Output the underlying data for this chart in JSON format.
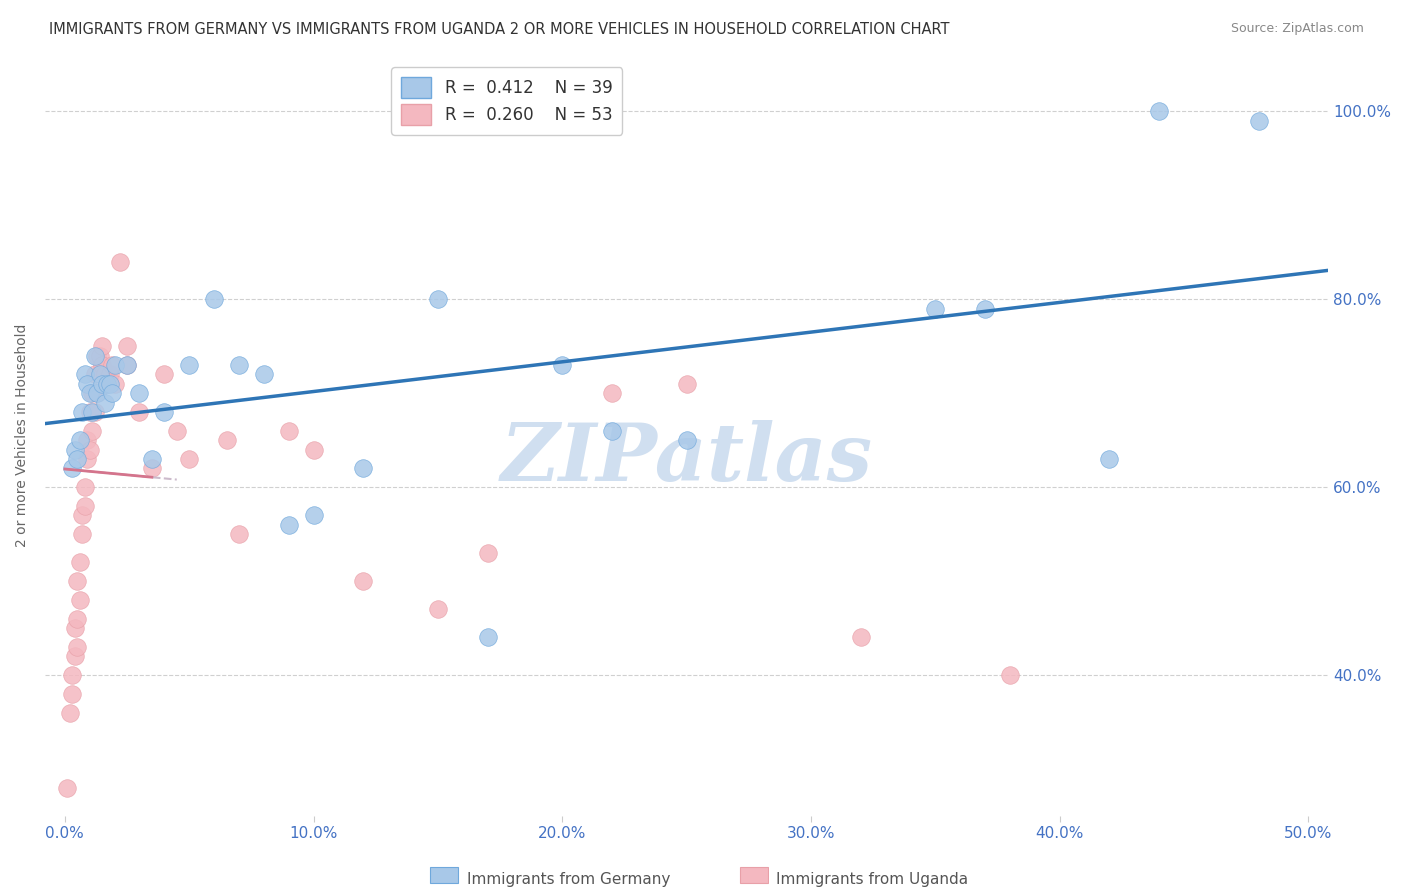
{
  "title": "IMMIGRANTS FROM GERMANY VS IMMIGRANTS FROM UGANDA 2 OR MORE VEHICLES IN HOUSEHOLD CORRELATION CHART",
  "source": "Source: ZipAtlas.com",
  "xlabel_ticks": [
    "0.0%",
    "10.0%",
    "20.0%",
    "30.0%",
    "40.0%",
    "50.0%"
  ],
  "xlabel_vals": [
    0.0,
    0.1,
    0.2,
    0.3,
    0.4,
    0.5
  ],
  "ylabel_ticks": [
    "40.0%",
    "60.0%",
    "80.0%",
    "100.0%"
  ],
  "ylabel_vals": [
    0.4,
    0.6,
    0.8,
    1.0
  ],
  "xlim": [
    -0.008,
    0.508
  ],
  "ylim": [
    0.25,
    1.06
  ],
  "ylabel": "2 or more Vehicles in Household",
  "legend_germany": "Immigrants from Germany",
  "legend_uganda": "Immigrants from Uganda",
  "R_germany": "0.412",
  "N_germany": "39",
  "R_uganda": "0.260",
  "N_uganda": "53",
  "germany_color": "#a8c8e8",
  "uganda_color": "#f4b8c0",
  "germany_edge_color": "#6fa8dc",
  "uganda_edge_color": "#e8a0a8",
  "trendline_germany_color": "#2e75b6",
  "trendline_uganda_color": "#d4748c",
  "trendline_dashed_color": "#ccbbcc",
  "watermark_color": "#d0dff0",
  "germany_x": [
    0.003,
    0.004,
    0.005,
    0.006,
    0.007,
    0.008,
    0.009,
    0.01,
    0.011,
    0.012,
    0.013,
    0.014,
    0.015,
    0.016,
    0.017,
    0.018,
    0.019,
    0.02,
    0.025,
    0.03,
    0.035,
    0.04,
    0.05,
    0.06,
    0.07,
    0.08,
    0.09,
    0.1,
    0.12,
    0.15,
    0.17,
    0.2,
    0.22,
    0.25,
    0.35,
    0.37,
    0.42,
    0.44,
    0.48
  ],
  "germany_y": [
    0.62,
    0.64,
    0.63,
    0.65,
    0.68,
    0.72,
    0.71,
    0.7,
    0.68,
    0.74,
    0.7,
    0.72,
    0.71,
    0.69,
    0.71,
    0.71,
    0.7,
    0.73,
    0.73,
    0.7,
    0.63,
    0.68,
    0.73,
    0.8,
    0.73,
    0.72,
    0.56,
    0.57,
    0.62,
    0.8,
    0.44,
    0.73,
    0.66,
    0.65,
    0.79,
    0.79,
    0.63,
    1.0,
    0.99
  ],
  "uganda_x": [
    0.001,
    0.002,
    0.003,
    0.003,
    0.004,
    0.004,
    0.005,
    0.005,
    0.005,
    0.006,
    0.006,
    0.007,
    0.007,
    0.008,
    0.008,
    0.009,
    0.009,
    0.01,
    0.01,
    0.011,
    0.011,
    0.012,
    0.012,
    0.013,
    0.013,
    0.014,
    0.014,
    0.015,
    0.015,
    0.016,
    0.017,
    0.018,
    0.019,
    0.02,
    0.022,
    0.025,
    0.025,
    0.03,
    0.035,
    0.04,
    0.045,
    0.05,
    0.065,
    0.07,
    0.09,
    0.1,
    0.12,
    0.15,
    0.17,
    0.22,
    0.25,
    0.32,
    0.38
  ],
  "uganda_y": [
    0.28,
    0.36,
    0.38,
    0.4,
    0.42,
    0.45,
    0.43,
    0.46,
    0.5,
    0.48,
    0.52,
    0.55,
    0.57,
    0.6,
    0.58,
    0.63,
    0.65,
    0.64,
    0.68,
    0.66,
    0.7,
    0.72,
    0.68,
    0.7,
    0.74,
    0.72,
    0.74,
    0.73,
    0.75,
    0.72,
    0.71,
    0.72,
    0.73,
    0.71,
    0.84,
    0.75,
    0.73,
    0.68,
    0.62,
    0.72,
    0.66,
    0.63,
    0.65,
    0.55,
    0.66,
    0.64,
    0.5,
    0.47,
    0.53,
    0.7,
    0.71,
    0.44,
    0.4
  ]
}
